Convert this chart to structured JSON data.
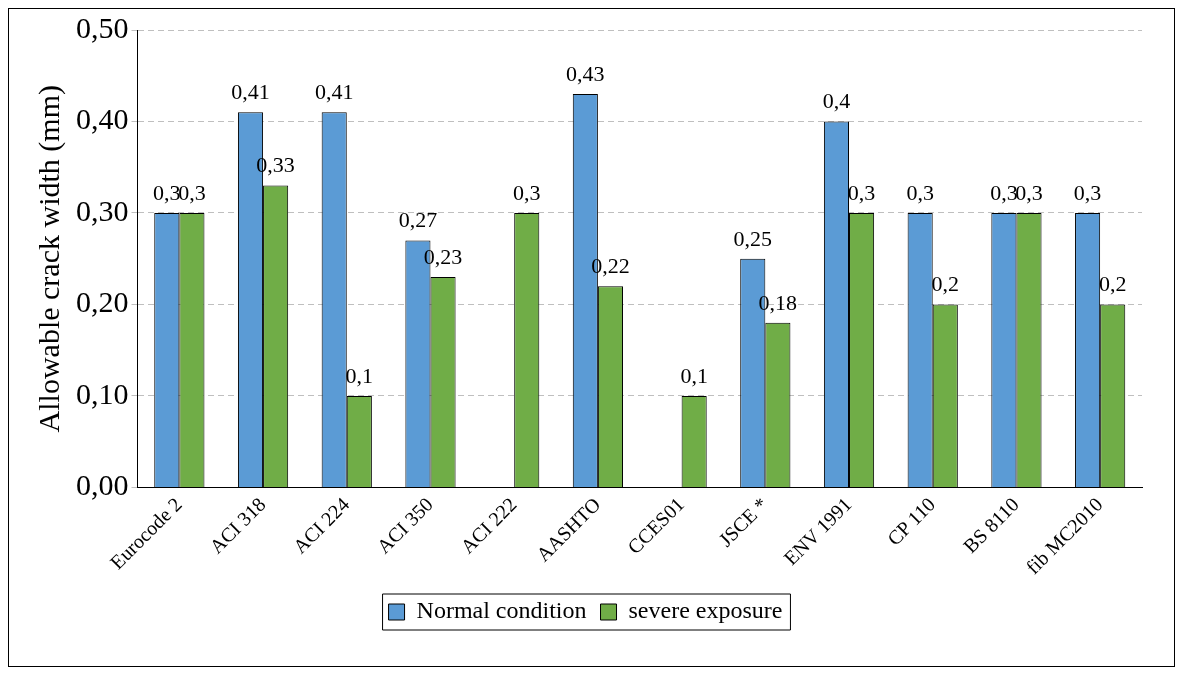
{
  "chart_data": {
    "type": "bar",
    "ylabel": "Allowable crack width (mm)",
    "categories": [
      "Eurocode 2",
      "ACI 318",
      "ACI 224",
      "ACI 350",
      "ACI 222",
      "AASHTO",
      "CCES01",
      "JSCE *",
      "ENV 1991",
      "CP 110",
      "BS 8110",
      "fib MC2010"
    ],
    "series": [
      {
        "name": "Normal condition",
        "color": "#5b9bd5",
        "values": [
          0.3,
          0.41,
          0.41,
          0.27,
          null,
          0.43,
          null,
          0.25,
          0.4,
          0.3,
          0.3,
          0.3
        ],
        "value_labels": [
          "0,3",
          "0,41",
          "0,41",
          "0,27",
          null,
          "0,43",
          null,
          "0,25",
          "0,4",
          "0,3",
          "0,3",
          "0,3"
        ]
      },
      {
        "name": "severe exposure",
        "color": "#70ad47",
        "values": [
          0.3,
          0.33,
          0.1,
          0.23,
          0.3,
          0.22,
          0.1,
          0.18,
          0.3,
          0.2,
          0.3,
          0.2
        ],
        "value_labels": [
          "0,3",
          "0,33",
          "0,1",
          "0,23",
          "0,3",
          "0,22",
          "0,1",
          "0,18",
          "0,3",
          "0,2",
          "0,3",
          "0,2"
        ]
      }
    ],
    "ylim": [
      0,
      0.5
    ],
    "yticks": [
      {
        "value": 0,
        "label": "0,00"
      },
      {
        "value": 0.1,
        "label": "0,10"
      },
      {
        "value": 0.2,
        "label": "0,20"
      },
      {
        "value": 0.3,
        "label": "0,30"
      },
      {
        "value": 0.4,
        "label": "0,40"
      },
      {
        "value": 0.5,
        "label": "0,50"
      }
    ],
    "grid": "y",
    "legend": "bottom"
  }
}
